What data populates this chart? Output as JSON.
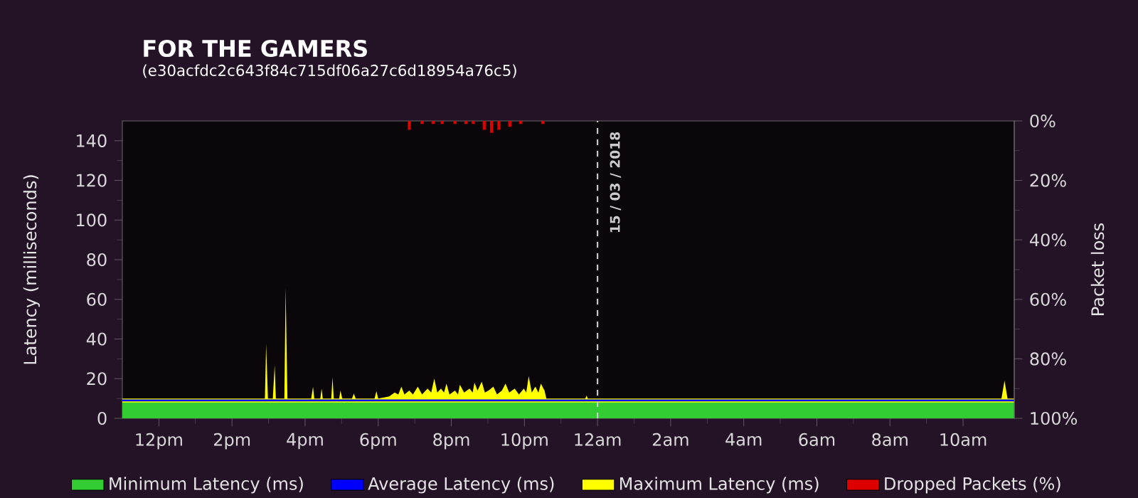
{
  "chart_data": {
    "type": "area",
    "title": "FOR THE GAMERS",
    "subtitle": "(e30acfdc2c643f84c715df06a27c6d18954a76c5)",
    "ylabel": "Latency (milliseconds)",
    "y2label": "Packet loss",
    "xlim": [
      "2018-03-14T11:00",
      "2018-03-15T11:24"
    ],
    "xticks": [
      {
        "value": "2018-03-14T12:00",
        "label": "12pm"
      },
      {
        "value": "2018-03-14T14:00",
        "label": "2pm"
      },
      {
        "value": "2018-03-14T16:00",
        "label": "4pm"
      },
      {
        "value": "2018-03-14T18:00",
        "label": "6pm"
      },
      {
        "value": "2018-03-14T20:00",
        "label": "8pm"
      },
      {
        "value": "2018-03-14T22:00",
        "label": "10pm"
      },
      {
        "value": "2018-03-15T00:00",
        "label": "12am"
      },
      {
        "value": "2018-03-15T02:00",
        "label": "2am"
      },
      {
        "value": "2018-03-15T04:00",
        "label": "4am"
      },
      {
        "value": "2018-03-15T06:00",
        "label": "6am"
      },
      {
        "value": "2018-03-15T08:00",
        "label": "8am"
      },
      {
        "value": "2018-03-15T10:00",
        "label": "10am"
      }
    ],
    "ylim": [
      0,
      150
    ],
    "yticks": [
      0,
      20,
      40,
      60,
      80,
      100,
      120,
      140
    ],
    "y2lim": [
      100,
      0
    ],
    "y2ticks": [
      {
        "value": 0,
        "label": "0%"
      },
      {
        "value": 20,
        "label": "20%"
      },
      {
        "value": 40,
        "label": "40%"
      },
      {
        "value": 60,
        "label": "60%"
      },
      {
        "value": 80,
        "label": "80%"
      },
      {
        "value": 100,
        "label": "100%"
      }
    ],
    "legend": "bottom",
    "ref_lines": [
      {
        "axis": "x",
        "value": "2018-03-15T00:00",
        "label": "15 / 03 / 2018",
        "color": "#cccccc",
        "line_style": "dashed"
      }
    ],
    "series": [
      {
        "name": "Minimum Latency (ms)",
        "color": "#33cc33",
        "x": [
          "2018-03-14T11:00",
          "2018-03-15T11:24"
        ],
        "values": [
          8,
          8
        ]
      },
      {
        "name": "Average Latency (ms)",
        "type": "line",
        "color": "#0000ff",
        "x": [
          "2018-03-14T11:00",
          "2018-03-15T11:24"
        ],
        "values": [
          9,
          9
        ]
      },
      {
        "name": "Maximum Latency (ms)",
        "color": "#ffff00",
        "x": [
          "2018-03-14T11:00",
          "2018-03-14T14:54",
          "2018-03-14T14:56",
          "2018-03-14T14:59",
          "2018-03-14T15:07",
          "2018-03-14T15:10",
          "2018-03-14T15:12",
          "2018-03-14T15:26",
          "2018-03-14T15:28",
          "2018-03-14T15:31",
          "2018-03-14T16:10",
          "2018-03-14T16:13",
          "2018-03-14T16:15",
          "2018-03-14T16:25",
          "2018-03-14T16:27",
          "2018-03-14T16:29",
          "2018-03-14T16:43",
          "2018-03-14T16:45",
          "2018-03-14T16:47",
          "2018-03-14T16:56",
          "2018-03-14T16:58",
          "2018-03-14T17:01",
          "2018-03-14T17:17",
          "2018-03-14T17:20",
          "2018-03-14T17:23",
          "2018-03-14T17:54",
          "2018-03-14T17:57",
          "2018-03-14T18:00",
          "2018-03-14T18:18",
          "2018-03-14T18:27",
          "2018-03-14T18:33",
          "2018-03-14T18:38",
          "2018-03-14T18:43",
          "2018-03-14T18:51",
          "2018-03-14T18:57",
          "2018-03-14T19:05",
          "2018-03-14T19:12",
          "2018-03-14T19:21",
          "2018-03-14T19:27",
          "2018-03-14T19:32",
          "2018-03-14T19:37",
          "2018-03-14T19:43",
          "2018-03-14T19:48",
          "2018-03-14T19:52",
          "2018-03-14T19:57",
          "2018-03-14T20:06",
          "2018-03-14T20:11",
          "2018-03-14T20:14",
          "2018-03-14T20:21",
          "2018-03-14T20:30",
          "2018-03-14T20:35",
          "2018-03-14T20:38",
          "2018-03-14T20:43",
          "2018-03-14T20:50",
          "2018-03-14T20:55",
          "2018-03-14T21:01",
          "2018-03-14T21:09",
          "2018-03-14T21:15",
          "2018-03-14T21:23",
          "2018-03-14T21:29",
          "2018-03-14T21:35",
          "2018-03-14T21:44",
          "2018-03-14T21:51",
          "2018-03-14T21:59",
          "2018-03-14T22:03",
          "2018-03-14T22:07",
          "2018-03-14T22:12",
          "2018-03-14T22:18",
          "2018-03-14T22:23",
          "2018-03-14T22:27",
          "2018-03-14T22:33",
          "2018-03-14T22:36",
          "2018-03-14T23:40",
          "2018-03-14T23:42",
          "2018-03-14T23:44",
          "2018-03-15T11:03",
          "2018-03-15T11:08",
          "2018-03-15T11:13",
          "2018-03-15T11:24"
        ],
        "values": [
          10,
          10,
          37.5,
          10,
          10,
          26.8,
          10,
          10,
          66,
          10,
          10,
          16,
          10,
          10,
          15,
          10,
          10,
          20.8,
          10,
          10,
          14,
          10,
          10,
          12.5,
          10,
          10,
          13.7,
          10,
          11,
          13,
          12,
          16,
          12,
          14,
          12,
          16,
          12,
          15,
          13,
          20,
          13,
          15,
          13,
          17.5,
          12,
          14,
          12,
          17,
          13,
          15,
          13,
          18,
          14,
          18.5,
          13,
          14,
          16,
          12,
          14,
          17.5,
          13,
          15,
          12,
          15,
          13,
          21.3,
          13,
          16,
          13,
          17.5,
          14,
          10,
          10,
          11.5,
          10,
          10,
          19,
          10,
          10
        ]
      },
      {
        "name": "Dropped Packets (%)",
        "type": "bar",
        "axis": "y2",
        "color": "#dd0000",
        "x": [
          "2018-03-14T18:51",
          "2018-03-14T19:12",
          "2018-03-14T19:30",
          "2018-03-14T19:45",
          "2018-03-14T20:06",
          "2018-03-14T20:24",
          "2018-03-14T20:36",
          "2018-03-14T20:54",
          "2018-03-14T21:06",
          "2018-03-14T21:18",
          "2018-03-14T21:36",
          "2018-03-14T21:54",
          "2018-03-14T22:30"
        ],
        "values": [
          3,
          1,
          1,
          1,
          1,
          1,
          1,
          3,
          4,
          3,
          2,
          1,
          1
        ]
      }
    ]
  }
}
